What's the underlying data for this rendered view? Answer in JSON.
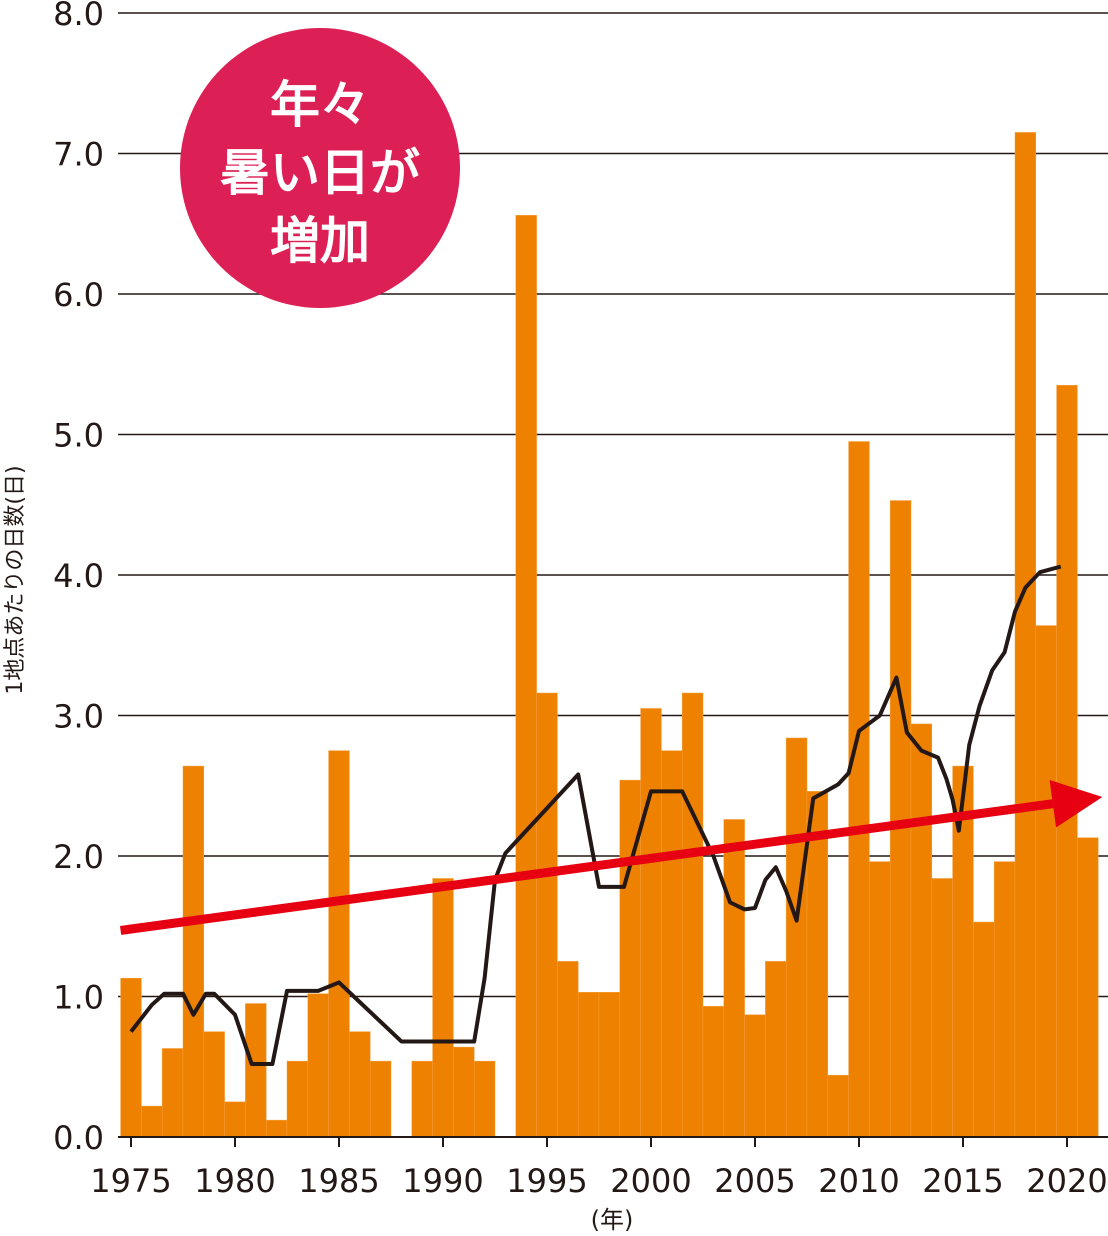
{
  "chart_data": {
    "type": "bar",
    "title": "",
    "xlabel": "(年)",
    "ylabel": "1地点あたりの日数(日)",
    "ylim": [
      0,
      8
    ],
    "xlim": [
      1975,
      2021
    ],
    "grid": true,
    "y_ticks": [
      "0.0",
      "1.0",
      "2.0",
      "3.0",
      "4.0",
      "5.0",
      "6.0",
      "7.0",
      "8.0"
    ],
    "x_ticks": [
      "1975",
      "1980",
      "1985",
      "1990",
      "1995",
      "2000",
      "2005",
      "2010",
      "2015",
      "2020"
    ],
    "bar_color": "#ee8100",
    "years": [
      1975,
      1976,
      1977,
      1978,
      1979,
      1980,
      1981,
      1982,
      1983,
      1984,
      1985,
      1986,
      1987,
      1988,
      1989,
      1990,
      1991,
      1992,
      1993,
      1994,
      1995,
      1996,
      1997,
      1998,
      1999,
      2000,
      2001,
      2002,
      2003,
      2004,
      2005,
      2006,
      2007,
      2008,
      2009,
      2010,
      2011,
      2012,
      2013,
      2014,
      2015,
      2016,
      2017,
      2018,
      2019,
      2020,
      2021
    ],
    "values": [
      1.13,
      0.22,
      0.63,
      2.64,
      0.75,
      0.25,
      0.95,
      0.12,
      0.54,
      1.02,
      2.75,
      0.75,
      0.54,
      0,
      0.54,
      1.84,
      0.64,
      0.54,
      0,
      6.56,
      3.16,
      1.25,
      1.03,
      1.03,
      2.54,
      3.05,
      2.75,
      3.16,
      0.93,
      2.26,
      0.87,
      1.25,
      2.84,
      2.46,
      0.44,
      4.95,
      1.96,
      4.53,
      2.94,
      1.84,
      2.64,
      1.53,
      1.96,
      7.15,
      3.64,
      5.35,
      2.13
    ],
    "moving_average": {
      "color": "#231815",
      "points": [
        [
          1975,
          0.75
        ],
        [
          1976,
          0.94
        ],
        [
          1976.6,
          1.02
        ],
        [
          1977.5,
          1.02
        ],
        [
          1978,
          0.87
        ],
        [
          1978.6,
          1.02
        ],
        [
          1979,
          1.02
        ],
        [
          1980,
          0.87
        ],
        [
          1980.8,
          0.52
        ],
        [
          1981.8,
          0.52
        ],
        [
          1982.5,
          1.04
        ],
        [
          1984,
          1.04
        ],
        [
          1985,
          1.1
        ],
        [
          1986,
          0.96
        ],
        [
          1988,
          0.68
        ],
        [
          1991.5,
          0.68
        ],
        [
          1992,
          1.13
        ],
        [
          1992.5,
          1.83
        ],
        [
          1993,
          2.02
        ],
        [
          1996.5,
          2.58
        ],
        [
          1997.5,
          1.78
        ],
        [
          1998.7,
          1.78
        ],
        [
          2000,
          2.46
        ],
        [
          2001.5,
          2.46
        ],
        [
          2003,
          2.0
        ],
        [
          2003.8,
          1.67
        ],
        [
          2004.5,
          1.62
        ],
        [
          2005,
          1.63
        ],
        [
          2005.5,
          1.83
        ],
        [
          2006,
          1.92
        ],
        [
          2006.5,
          1.75
        ],
        [
          2007,
          1.54
        ],
        [
          2007.8,
          2.41
        ],
        [
          2009,
          2.51
        ],
        [
          2009.5,
          2.59
        ],
        [
          2010,
          2.89
        ],
        [
          2011,
          3.0
        ],
        [
          2011.8,
          3.27
        ],
        [
          2012.3,
          2.88
        ],
        [
          2013,
          2.75
        ],
        [
          2013.8,
          2.7
        ],
        [
          2014.2,
          2.55
        ],
        [
          2014.5,
          2.4
        ],
        [
          2014.8,
          2.18
        ],
        [
          2015.3,
          2.79
        ],
        [
          2015.8,
          3.07
        ],
        [
          2016.4,
          3.32
        ],
        [
          2017,
          3.45
        ],
        [
          2017.5,
          3.74
        ],
        [
          2018,
          3.91
        ],
        [
          2018.7,
          4.02
        ],
        [
          2019.7,
          4.06
        ]
      ]
    },
    "trend_arrow": {
      "color": "#e60012",
      "from": [
        1974.5,
        1.47
      ],
      "to": [
        2021.7,
        2.42
      ]
    },
    "annotation": {
      "lines": [
        "年々",
        "暑い日が",
        "増加"
      ],
      "color": "#dc2055"
    }
  }
}
